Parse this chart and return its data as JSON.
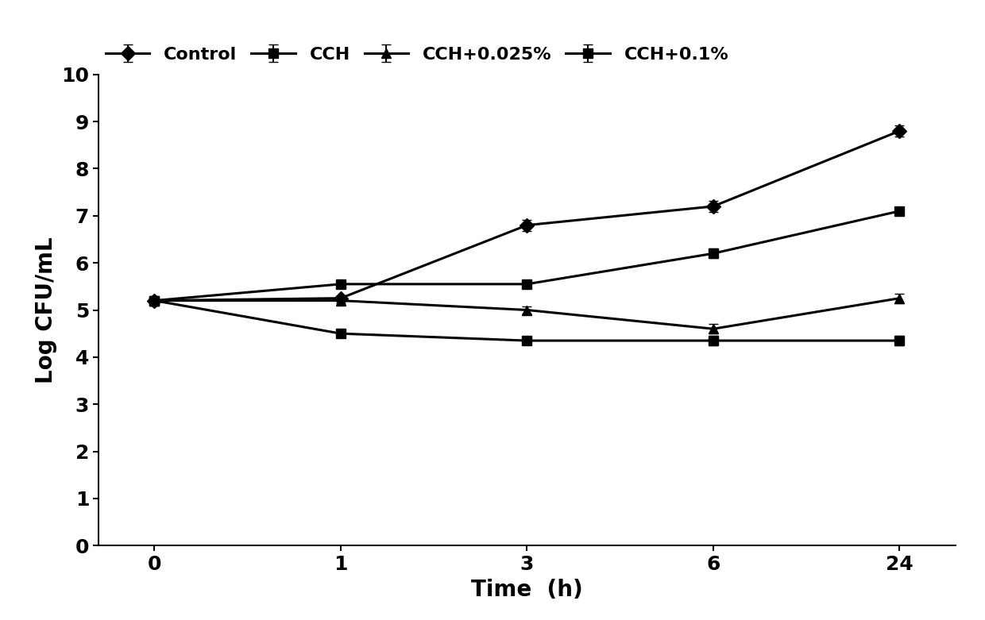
{
  "title": "",
  "xlabel": "Time  (h)",
  "ylabel": "Log CFU/mL",
  "x_labels": [
    "0",
    "1",
    "3",
    "6",
    "24"
  ],
  "x_positions": [
    0,
    1,
    2,
    3,
    4
  ],
  "series": [
    {
      "label": "Control",
      "y": [
        5.2,
        5.25,
        6.8,
        7.2,
        8.8
      ],
      "yerr": [
        0.05,
        0.05,
        0.12,
        0.12,
        0.12
      ],
      "marker": "D",
      "color": "#000000"
    },
    {
      "label": "CCH",
      "y": [
        5.2,
        5.55,
        5.55,
        6.2,
        7.1
      ],
      "yerr": [
        0.05,
        0.08,
        0.08,
        0.1,
        0.08
      ],
      "marker": "s",
      "color": "#000000"
    },
    {
      "label": "CCH+0.025%",
      "y": [
        5.2,
        5.2,
        5.0,
        4.6,
        5.25
      ],
      "yerr": [
        0.05,
        0.05,
        0.08,
        0.1,
        0.1
      ],
      "marker": "^",
      "color": "#000000"
    },
    {
      "label": "CCH+0.1%",
      "y": [
        5.2,
        4.5,
        4.35,
        4.35,
        4.35
      ],
      "yerr": [
        0.05,
        0.08,
        0.06,
        0.1,
        0.1
      ],
      "marker": "s",
      "color": "#000000"
    }
  ],
  "ylim": [
    0,
    10
  ],
  "yticks": [
    0,
    1,
    2,
    3,
    4,
    5,
    6,
    7,
    8,
    9,
    10
  ],
  "linewidth": 2.2,
  "markersize": 9,
  "capsize": 4,
  "elinewidth": 1.5,
  "fontsize_label": 20,
  "fontsize_tick": 18,
  "fontsize_legend": 16
}
